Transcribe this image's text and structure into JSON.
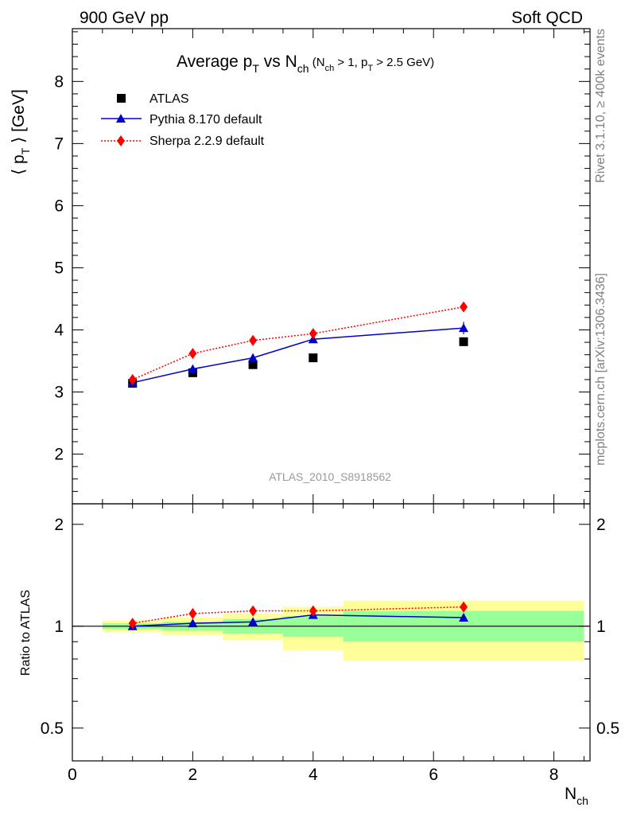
{
  "header": {
    "left": "900 GeV pp",
    "right": "Soft QCD"
  },
  "side_labels": {
    "rivet": "Rivet 3.1.10, ≥ 400k events",
    "mcplots": "mcplots.cern.ch [arXiv:1306.3436]"
  },
  "title": {
    "main": "Average p",
    "main_sub": "T",
    "vs": " vs N",
    "vs_sub": "ch",
    "cuts_open": " (N",
    "cuts_sub1": "ch",
    "cuts_mid": " > 1, p",
    "cuts_sub2": "T",
    "cuts_close": " > 2.5 GeV)"
  },
  "watermark": "ATLAS_2010_S8918562",
  "colors": {
    "atlas": "#000000",
    "pythia": "#0000cc",
    "sherpa": "#ff0000",
    "band_inner": "#99ff99",
    "band_outer": "#ffff99"
  },
  "chart_data": [
    {
      "type": "scatter",
      "title": "Average pT vs Nch (Nch > 1, pT > 2.5 GeV)",
      "ylabel": "⟨ p_T ⟩ [GeV]",
      "xlim": [
        0,
        8.6
      ],
      "ylim": [
        1.2,
        8.85
      ],
      "x_ticks": [
        0,
        2,
        4,
        6,
        8
      ],
      "y_ticks": [
        2,
        3,
        4,
        5,
        6,
        7,
        8
      ],
      "legend_position": "top-left",
      "series": [
        {
          "name": "ATLAS",
          "marker": "square",
          "x": [
            1,
            2,
            3,
            4,
            6.5
          ],
          "y": [
            3.14,
            3.31,
            3.44,
            3.55,
            3.81
          ],
          "yerr": [
            0.03,
            0.04,
            0.05,
            0.06,
            0.07
          ]
        },
        {
          "name": "Pythia 8.170 default",
          "marker": "triangle",
          "line": "solid",
          "x": [
            1,
            2,
            3,
            4,
            6.5
          ],
          "y": [
            3.15,
            3.37,
            3.55,
            3.85,
            4.03
          ],
          "yerr": [
            0.01,
            0.02,
            0.03,
            0.05,
            0.1
          ]
        },
        {
          "name": "Sherpa 2.2.9 default",
          "marker": "diamond",
          "line": "dotted",
          "x": [
            1,
            2,
            3,
            4,
            6.5
          ],
          "y": [
            3.2,
            3.62,
            3.83,
            3.94,
            4.37
          ],
          "yerr": [
            0.01,
            0.02,
            0.03,
            0.04,
            0.04
          ]
        }
      ]
    },
    {
      "type": "scatter",
      "ylabel": "Ratio to ATLAS",
      "xlabel": "N_ch",
      "xlim": [
        0,
        8.6
      ],
      "ylim": [
        0.4,
        2.3
      ],
      "x_ticks": [
        0,
        2,
        4,
        6,
        8
      ],
      "y_ticks": [
        0.5,
        1,
        2
      ],
      "y_scale": "log",
      "reference_line": 1,
      "bands": [
        {
          "x": [
            0.5,
            1.5
          ],
          "inner": [
            0.98,
            1.02
          ],
          "outer": [
            0.96,
            1.04
          ]
        },
        {
          "x": [
            1.5,
            2.5
          ],
          "inner": [
            0.97,
            1.03
          ],
          "outer": [
            0.94,
            1.06
          ]
        },
        {
          "x": [
            2.5,
            3.5
          ],
          "inner": [
            0.95,
            1.05
          ],
          "outer": [
            0.91,
            1.09
          ]
        },
        {
          "x": [
            3.5,
            4.5
          ],
          "inner": [
            0.93,
            1.07
          ],
          "outer": [
            0.85,
            1.14
          ]
        },
        {
          "x": [
            4.5,
            8.5
          ],
          "inner": [
            0.9,
            1.11
          ],
          "outer": [
            0.79,
            1.19
          ]
        }
      ],
      "series": [
        {
          "name": "Pythia 8.170 default",
          "x": [
            1,
            2,
            3,
            4,
            6.5
          ],
          "y": [
            1.0,
            1.02,
            1.03,
            1.08,
            1.06
          ]
        },
        {
          "name": "Sherpa 2.2.9 default",
          "x": [
            1,
            2,
            3,
            4,
            6.5
          ],
          "y": [
            1.02,
            1.09,
            1.11,
            1.11,
            1.14
          ]
        }
      ]
    }
  ]
}
